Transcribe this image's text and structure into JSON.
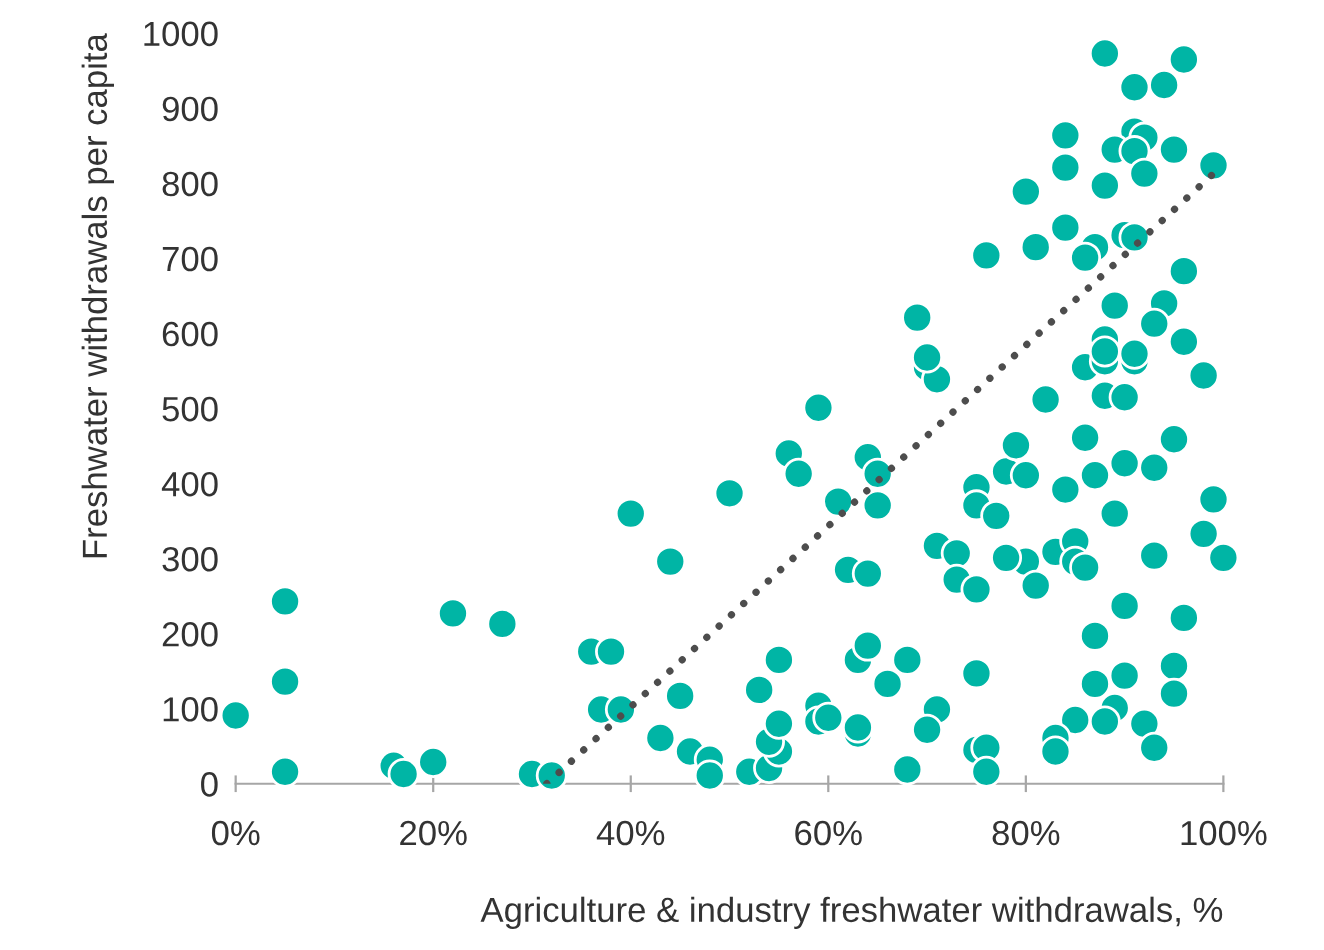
{
  "chart_data": {
    "type": "scatter",
    "xlabel": "Agriculture & industry freshwater withdrawals, %",
    "ylabel": "Freshwater withdrawals per capita",
    "xlim": [
      0,
      100
    ],
    "ylim": [
      0,
      1000
    ],
    "xticks": [
      {
        "value": 0,
        "label": "0%"
      },
      {
        "value": 20,
        "label": "20%"
      },
      {
        "value": 40,
        "label": "40%"
      },
      {
        "value": 60,
        "label": "60%"
      },
      {
        "value": 80,
        "label": "80%"
      },
      {
        "value": 100,
        "label": "100%"
      }
    ],
    "yticks": [
      0,
      100,
      200,
      300,
      400,
      500,
      600,
      700,
      800,
      900,
      1000
    ],
    "grid": false,
    "legend": false,
    "marker": "circle",
    "series": [
      {
        "color": "#00b5a5",
        "x": [
          0,
          5,
          5,
          5,
          16,
          17,
          20,
          22,
          27,
          30,
          32,
          36,
          38,
          37,
          39,
          40,
          44,
          45,
          43,
          46,
          48,
          48,
          50,
          59,
          56,
          57,
          64,
          65,
          61,
          65,
          71,
          73,
          73,
          75,
          62,
          64,
          75,
          75,
          77,
          78,
          80,
          79,
          80,
          81,
          70,
          71,
          52,
          54,
          55,
          54,
          55,
          53,
          55,
          59,
          59,
          60,
          63,
          63,
          63,
          64,
          68,
          66,
          68,
          71,
          70,
          75,
          75,
          76,
          76,
          86,
          88,
          91,
          98,
          82,
          88,
          90,
          86,
          95,
          84,
          87,
          90,
          93,
          89,
          99,
          98,
          100,
          93,
          78,
          83,
          85,
          85,
          86,
          90,
          96,
          87,
          95,
          90,
          87,
          95,
          89,
          85,
          88,
          92,
          83,
          83,
          93,
          88,
          96,
          91,
          94,
          84,
          91,
          92,
          89,
          91,
          95,
          84,
          92,
          88,
          80,
          99,
          84,
          81,
          87,
          86,
          90,
          91,
          96,
          89,
          94,
          93,
          88,
          88,
          91,
          96,
          76,
          69,
          70
        ],
        "values": [
          91,
          243,
          136,
          16,
          24,
          13,
          29,
          227,
          213,
          13,
          11,
          176,
          176,
          99,
          99,
          360,
          296,
          117,
          61,
          43,
          32,
          11,
          387,
          501,
          440,
          413,
          435,
          413,
          376,
          371,
          317,
          307,
          272,
          259,
          285,
          280,
          395,
          371,
          357,
          416,
          411,
          451,
          296,
          264,
          555,
          539,
          16,
          21,
          43,
          56,
          80,
          125,
          165,
          104,
          83,
          88,
          67,
          75,
          165,
          184,
          165,
          133,
          19,
          99,
          72,
          147,
          45,
          48,
          16,
          555,
          563,
          563,
          544,
          512,
          517,
          515,
          461,
          459,
          392,
          411,
          427,
          421,
          360,
          379,
          333,
          301,
          304,
          301,
          309,
          323,
          296,
          288,
          237,
          221,
          197,
          157,
          144,
          133,
          120,
          101,
          85,
          83,
          80,
          61,
          43,
          48,
          973,
          965,
          928,
          931,
          864,
          869,
          861,
          845,
          843,
          845,
          821,
          813,
          797,
          789,
          824,
          741,
          715,
          715,
          701,
          731,
          728,
          683,
          637,
          640,
          613,
          592,
          576,
          573,
          589,
          704,
          621,
          568
        ]
      },
      {
        "type": "line",
        "color": "#4d4d4d",
        "line_style": "dotted",
        "marker": "none",
        "x": [
          31.5,
          100
        ],
        "values": [
          0,
          825
        ]
      }
    ]
  }
}
